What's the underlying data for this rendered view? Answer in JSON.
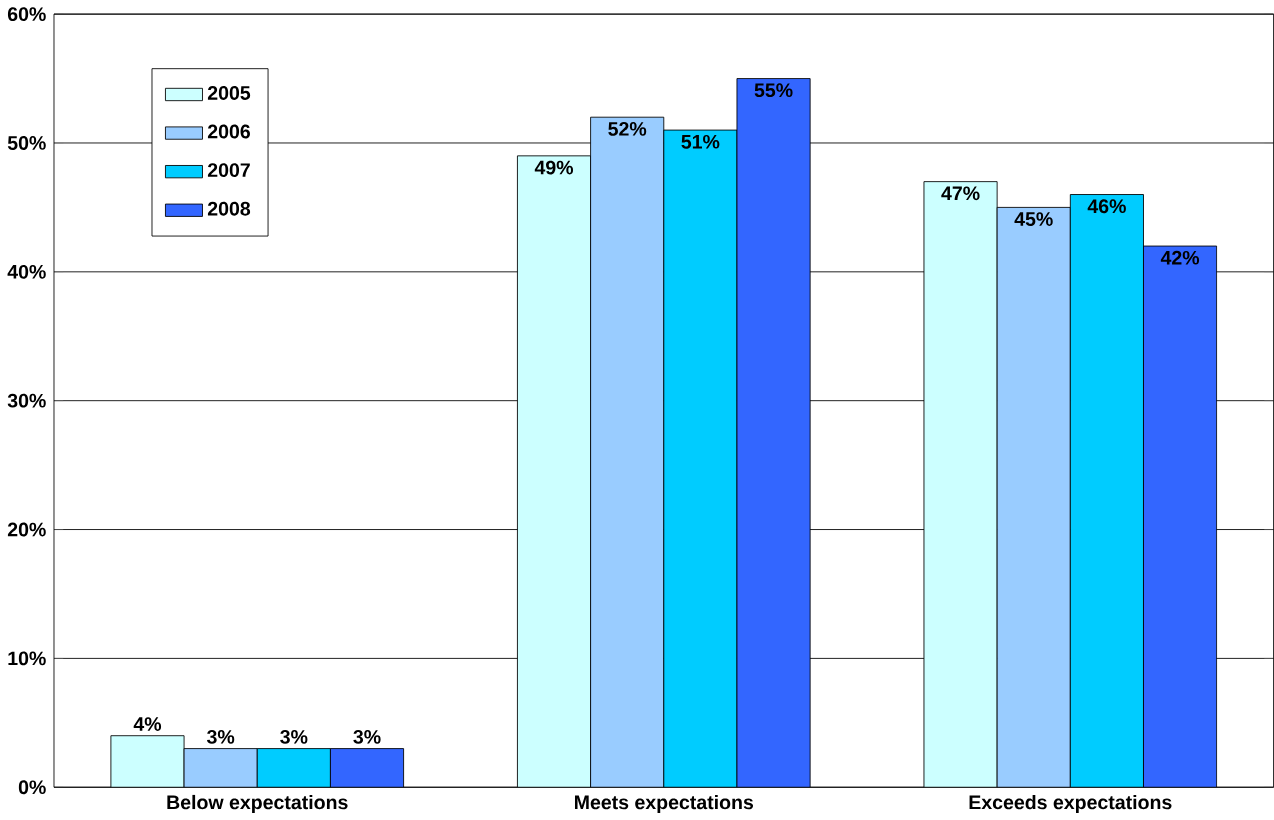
{
  "chart_data": {
    "type": "bar",
    "categories": [
      "Below expectations",
      "Meets expectations",
      "Exceeds expectations"
    ],
    "series": [
      {
        "name": "2005",
        "color": "#ccffff",
        "values": [
          4,
          49,
          47
        ],
        "value_labels": [
          "4%",
          "49%",
          "47%"
        ]
      },
      {
        "name": "2006",
        "color": "#99ccff",
        "values": [
          3,
          52,
          45
        ],
        "value_labels": [
          "3%",
          "52%",
          "45%"
        ]
      },
      {
        "name": "2007",
        "color": "#00ccff",
        "values": [
          3,
          51,
          46
        ],
        "value_labels": [
          "3%",
          "51%",
          "46%"
        ]
      },
      {
        "name": "2008",
        "color": "#3366ff",
        "values": [
          3,
          55,
          42
        ],
        "value_labels": [
          "3%",
          "55%",
          "42%"
        ]
      }
    ],
    "ylim": [
      0,
      60
    ],
    "yticks": [
      {
        "value": 0,
        "label": "0%"
      },
      {
        "value": 10,
        "label": "10%"
      },
      {
        "value": 20,
        "label": "20%"
      },
      {
        "value": 30,
        "label": "30%"
      },
      {
        "value": 40,
        "label": "40%"
      },
      {
        "value": 50,
        "label": "50%"
      },
      {
        "value": 60,
        "label": "60%"
      }
    ],
    "grid": "y",
    "legend": "top left"
  }
}
